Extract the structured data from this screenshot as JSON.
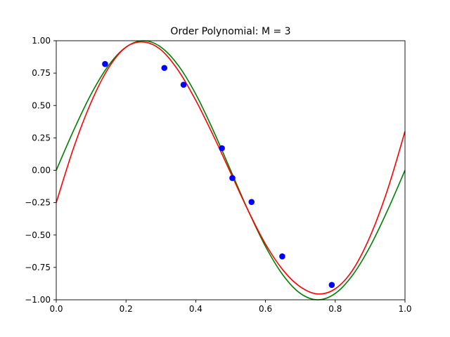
{
  "chart_data": {
    "type": "scatter",
    "title": "Order Polynomial: M = 3",
    "xlabel": "",
    "ylabel": "",
    "xlim": [
      0.0,
      1.0
    ],
    "ylim": [
      -1.0,
      1.0
    ],
    "grid": false,
    "legend": "none",
    "x_ticks": [
      0.0,
      0.2,
      0.4,
      0.6,
      0.8,
      1.0
    ],
    "x_tick_labels": [
      "0.0",
      "0.2",
      "0.4",
      "0.6",
      "0.8",
      "1.0"
    ],
    "y_ticks": [
      1.0,
      0.75,
      0.5,
      0.25,
      0.0,
      -0.25,
      -0.5,
      -0.75,
      -1.0
    ],
    "y_tick_labels": [
      "1.00",
      "0.75",
      "0.50",
      "0.25",
      "0.00",
      "−0.25",
      "−0.50",
      "−0.75",
      "−1.00"
    ],
    "points": {
      "color": "#0000ff",
      "x": [
        0.14,
        0.31,
        0.365,
        0.475,
        0.505,
        0.56,
        0.648,
        0.79
      ],
      "y": [
        0.82,
        0.79,
        0.66,
        0.17,
        -0.06,
        -0.245,
        -0.665,
        -0.885
      ]
    },
    "series": [
      {
        "color": "#008000",
        "style": "line",
        "x": [
          0.0,
          0.05,
          0.1,
          0.15,
          0.2,
          0.25,
          0.3,
          0.35,
          0.4,
          0.45,
          0.5,
          0.55,
          0.6,
          0.65,
          0.7,
          0.75,
          0.8,
          0.85,
          0.9,
          0.95,
          1.0
        ],
        "y": [
          0.0,
          0.309,
          0.588,
          0.809,
          0.951,
          1.0,
          0.951,
          0.809,
          0.588,
          0.309,
          0.0,
          -0.309,
          -0.588,
          -0.809,
          -0.951,
          -1.0,
          -0.951,
          -0.809,
          -0.588,
          -0.309,
          0.0
        ]
      },
      {
        "color": "#ff0000",
        "style": "line",
        "x": [
          0.0,
          0.05,
          0.1,
          0.15,
          0.2,
          0.25,
          0.3,
          0.35,
          0.4,
          0.45,
          0.5,
          0.55,
          0.6,
          0.65,
          0.7,
          0.75,
          0.8,
          0.85,
          0.9,
          0.95,
          1.0
        ],
        "y": [
          -0.25,
          0.175,
          0.525,
          0.79,
          0.95,
          0.99,
          0.93,
          0.77,
          0.54,
          0.27,
          -0.02,
          -0.31,
          -0.57,
          -0.77,
          -0.9,
          -0.955,
          -0.915,
          -0.77,
          -0.51,
          -0.15,
          0.3
        ]
      }
    ]
  }
}
